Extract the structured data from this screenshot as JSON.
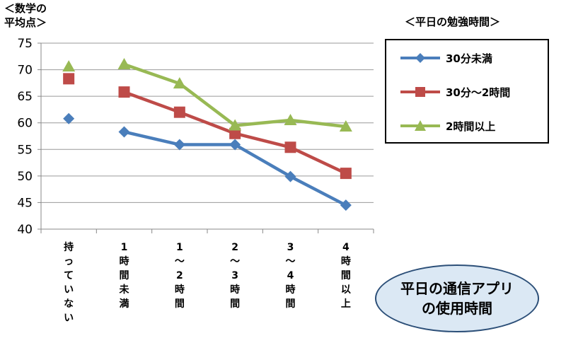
{
  "chart_data": {
    "type": "line",
    "y_title_lines": [
      "＜数学の",
      "平均点＞"
    ],
    "legend_title": "＜平日の勉強時間＞",
    "x_title_lines": [
      "平日の通信アプリ",
      "の使用時間"
    ],
    "ylim": [
      40,
      75
    ],
    "yticks": [
      "75",
      "70",
      "65",
      "60",
      "55",
      "50",
      "45",
      "40"
    ],
    "grid": true,
    "categories": [
      [
        "持",
        "っ",
        "て",
        "い",
        "な",
        "い"
      ],
      [
        "1",
        "時",
        "間",
        "未",
        "満"
      ],
      [
        "1",
        "～",
        "2",
        "時",
        "間"
      ],
      [
        "2",
        "～",
        "3",
        "時",
        "間"
      ],
      [
        "3",
        "～",
        "4",
        "時",
        "間"
      ],
      [
        "4",
        "時",
        "間",
        "以",
        "上"
      ]
    ],
    "series": [
      {
        "name": "30分未満",
        "color": "#4a7ebb",
        "marker": "diamond",
        "values": [
          60.8,
          58.3,
          55.9,
          55.9,
          49.9,
          44.5
        ]
      },
      {
        "name": "30分～2時間",
        "color": "#be4b48",
        "marker": "square",
        "values": [
          68.3,
          65.8,
          62.0,
          58.0,
          55.4,
          50.5
        ]
      },
      {
        "name": "2時間以上",
        "color": "#98b954",
        "marker": "triangle",
        "values": [
          70.6,
          71.0,
          67.4,
          59.5,
          60.5,
          59.3
        ]
      }
    ]
  }
}
